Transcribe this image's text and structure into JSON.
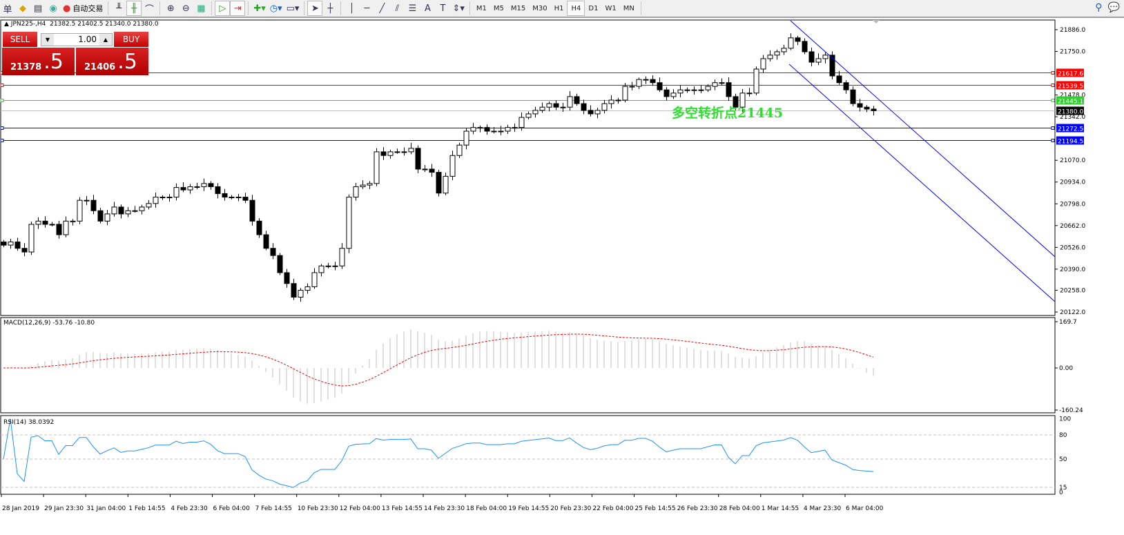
{
  "toolbar": {
    "cut_label": "单",
    "auto_trade_label": "自动交易",
    "timeframes": [
      "M1",
      "M5",
      "M15",
      "M30",
      "H1",
      "H4",
      "D1",
      "W1",
      "MN"
    ],
    "active_timeframe": "H4"
  },
  "chart_header": {
    "symbol": "JPN225-,H4",
    "ohlc": "21382.5 21402.5 21340.0 21380.0"
  },
  "trade_panel": {
    "sell_label": "SELL",
    "buy_label": "BUY",
    "lot": "1.00",
    "sell_price_main": "21378",
    "sell_price_frac": ".5",
    "buy_price_main": "21406",
    "buy_price_frac": ".5"
  },
  "annotation": "多空转折点21445",
  "chart_data": {
    "type": "candlestick",
    "price_axis_ticks": [
      "21886.0",
      "21750.0",
      "21478.0",
      "21342.0",
      "21070.0",
      "20934.0",
      "20798.0",
      "20662.0",
      "20526.0",
      "20390.0",
      "20258.0",
      "20122.0"
    ],
    "ylim": [
      20122,
      21886
    ],
    "closes": [
      20540,
      20560,
      20520,
      20497,
      20670,
      20690,
      20670,
      20670,
      20605,
      20690,
      20690,
      20820,
      20820,
      20755,
      20690,
      20735,
      20778,
      20735,
      20755,
      20755,
      20778,
      20800,
      20840,
      20840,
      20840,
      20900,
      20885,
      20905,
      20905,
      20925,
      20905,
      20862,
      20840,
      20840,
      20840,
      20820,
      20690,
      20605,
      20520,
      20475,
      20368,
      20300,
      20215,
      20258,
      20280,
      20368,
      20410,
      20410,
      20410,
      20520,
      20840,
      20905,
      20915,
      20925,
      21123,
      21100,
      21123,
      21123,
      21123,
      21145,
      21015,
      21015,
      20995,
      20865,
      20970,
      21100,
      21165,
      21252,
      21275,
      21275,
      21252,
      21252,
      21252,
      21275,
      21275,
      21338,
      21360,
      21382,
      21402,
      21424,
      21402,
      21402,
      21468,
      21424,
      21382,
      21360,
      21382,
      21424,
      21446,
      21446,
      21532,
      21532,
      21575,
      21575,
      21555,
      21510,
      21468,
      21490,
      21510,
      21510,
      21510,
      21510,
      21532,
      21555,
      21555,
      21468,
      21402,
      21490,
      21490,
      21640,
      21705,
      21727,
      21748,
      21770,
      21835,
      21813,
      21748,
      21683,
      21705,
      21727,
      21597,
      21555,
      21510,
      21424,
      21402,
      21390,
      21380
    ],
    "horizontal_lines": [
      {
        "price": "21617.6",
        "color": "#ff0000"
      },
      {
        "price": "21539.5",
        "color": "#ff0000"
      },
      {
        "price": "21445.1",
        "color": "#33cc33"
      },
      {
        "price": "21380.0",
        "color": "#000000",
        "current": true
      },
      {
        "price": "21272.5",
        "color": "#0000ff"
      },
      {
        "price": "21194.5",
        "color": "#0000ff"
      }
    ],
    "time_labels": [
      "28 Jan 2019",
      "29 Jan 23:30",
      "31 Jan 04:00",
      "1 Feb 14:55",
      "4 Feb 23:30",
      "6 Feb 04:00",
      "7 Feb 14:55",
      "10 Feb 23:30",
      "12 Feb 04:00",
      "13 Feb 14:55",
      "14 Feb 23:30",
      "18 Feb 04:00",
      "19 Feb 14:55",
      "20 Feb 23:30",
      "22 Feb 04:00",
      "25 Feb 14:55",
      "26 Feb 23:30",
      "28 Feb 04:00",
      "1 Mar 14:55",
      "4 Mar 23:30",
      "6 Mar 04:00"
    ],
    "macd": {
      "label": "MACD(12,26,9) -53.76 -10.80",
      "ticks": [
        "169.7",
        "0.00",
        "-160.24"
      ],
      "ylim": [
        -160.24,
        169.7
      ],
      "signal_color": "#ff0000",
      "hist_color": "#c0c0c0"
    },
    "rsi": {
      "label": "RSI(14) 38.0392",
      "ticks": [
        "100",
        "80",
        "50",
        "15",
        "0"
      ],
      "levels": [
        80,
        50,
        15
      ],
      "line_color": "#1e90ff"
    }
  }
}
